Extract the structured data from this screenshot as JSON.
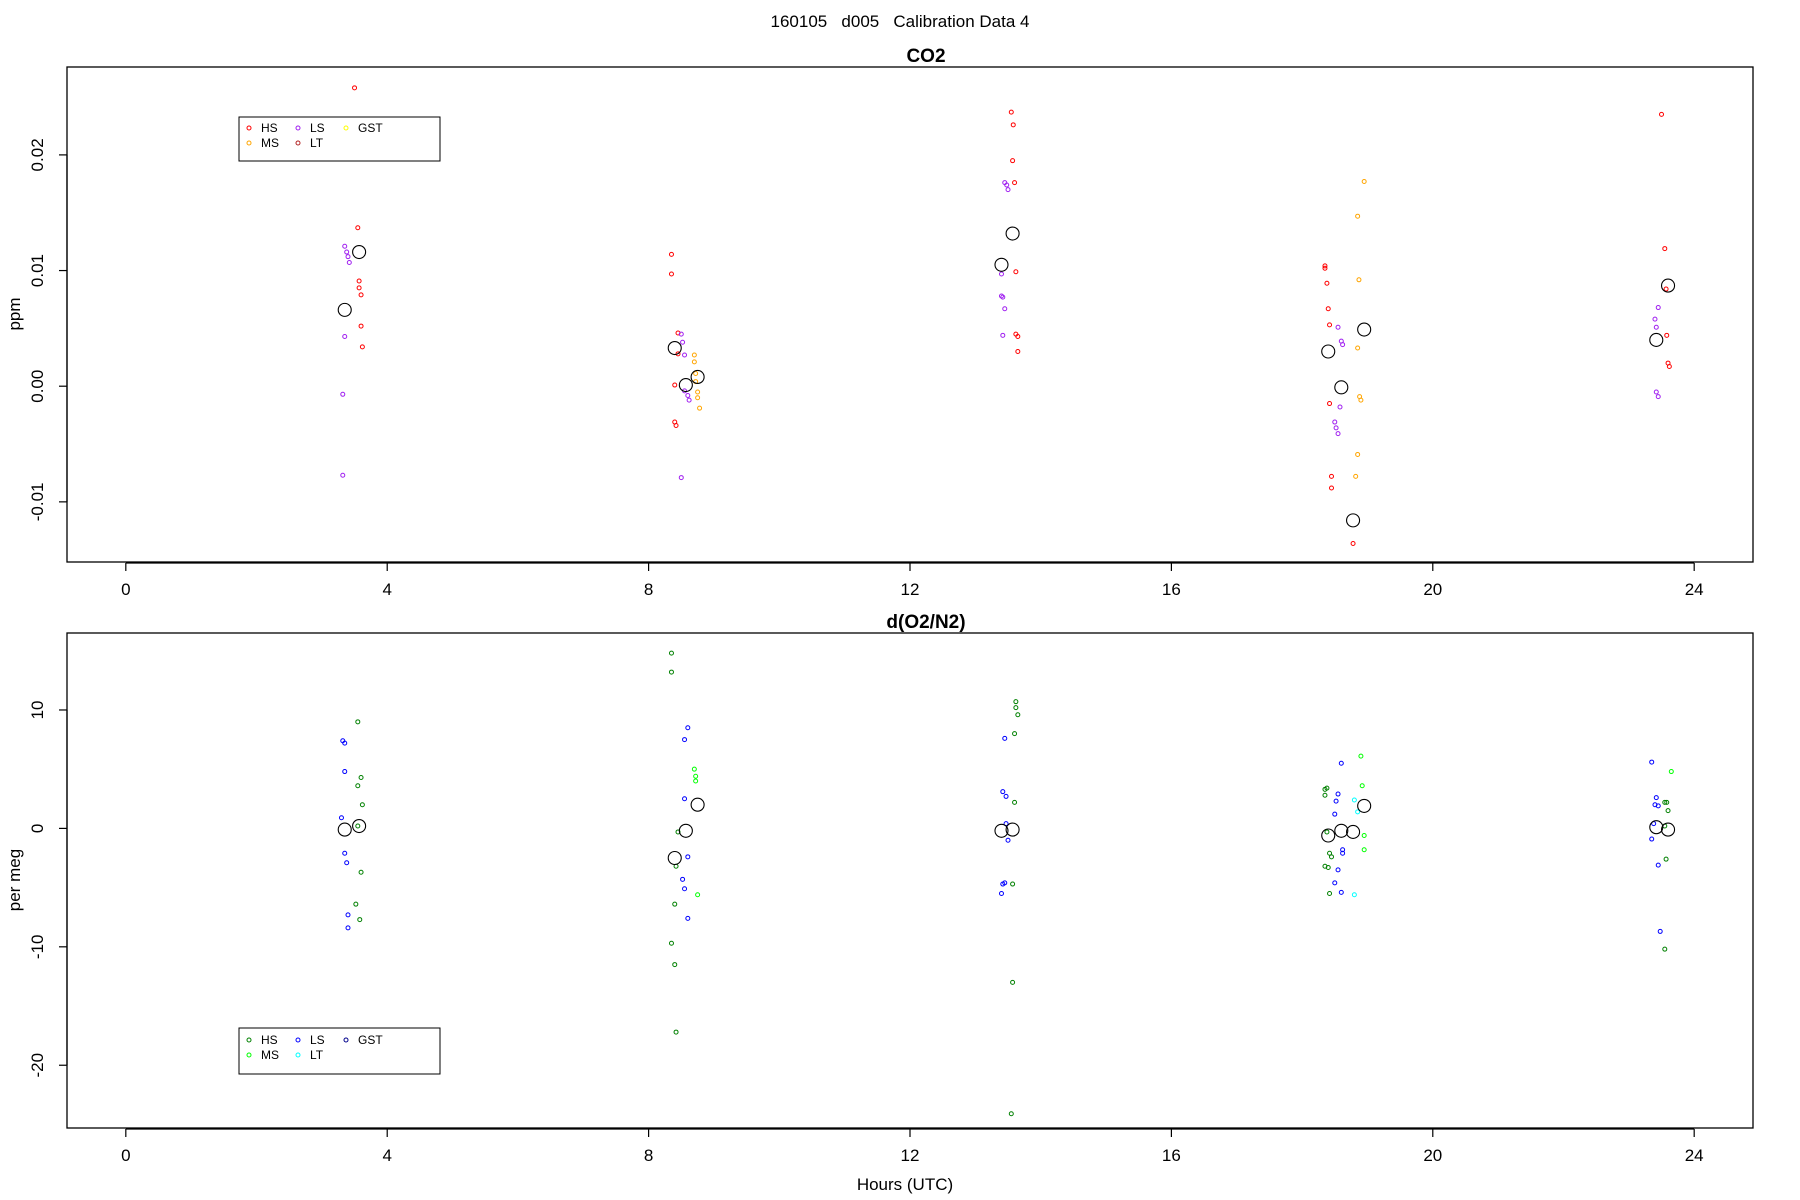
{
  "figure": {
    "suptitle": "160105   d005   Calibration Data 4"
  },
  "chart_data": [
    {
      "type": "scatter",
      "title": "CO2",
      "xlabel": "",
      "ylabel": "ppm",
      "xlim": [
        -0.9,
        24.9
      ],
      "ylim": [
        -0.0152,
        0.0276
      ],
      "x_ticks": [
        0,
        4,
        8,
        12,
        16,
        20,
        24
      ],
      "y_ticks": [
        -0.01,
        0.0,
        0.01,
        0.02
      ],
      "y_tick_labels": [
        "-0.01",
        "0.00",
        "0.01",
        "0.02"
      ],
      "grid": false,
      "legend_position": "top-left",
      "series": [
        {
          "name": "HS",
          "color": "#ff0000",
          "points": [
            [
              3.5,
              0.0258
            ],
            [
              3.55,
              0.0137
            ],
            [
              3.57,
              0.0091
            ],
            [
              3.57,
              0.0085
            ],
            [
              3.6,
              0.0079
            ],
            [
              3.6,
              0.0052
            ],
            [
              3.62,
              0.0034
            ],
            [
              8.35,
              0.0114
            ],
            [
              8.35,
              0.0097
            ],
            [
              8.45,
              0.0046
            ],
            [
              8.45,
              0.0028
            ],
            [
              8.4,
              0.0001
            ],
            [
              8.4,
              -0.0031
            ],
            [
              8.42,
              -0.0034
            ],
            [
              13.55,
              0.0237
            ],
            [
              13.58,
              0.0226
            ],
            [
              13.57,
              0.0195
            ],
            [
              13.6,
              0.0176
            ],
            [
              13.62,
              0.0099
            ],
            [
              13.62,
              0.0045
            ],
            [
              13.65,
              0.0043
            ],
            [
              13.65,
              0.003
            ],
            [
              18.35,
              0.0104
            ],
            [
              18.35,
              0.0102
            ],
            [
              18.38,
              0.0089
            ],
            [
              18.4,
              0.0067
            ],
            [
              18.42,
              0.0053
            ],
            [
              18.42,
              -0.0015
            ],
            [
              18.45,
              -0.0078
            ],
            [
              18.45,
              -0.0088
            ],
            [
              18.78,
              -0.0136
            ],
            [
              23.5,
              0.0235
            ],
            [
              23.55,
              0.0119
            ],
            [
              23.57,
              0.0084
            ],
            [
              23.58,
              0.0044
            ],
            [
              23.6,
              0.002
            ],
            [
              23.62,
              0.0017
            ]
          ]
        },
        {
          "name": "MS",
          "color": "#ffa500",
          "points": [
            [
              8.7,
              0.0027
            ],
            [
              8.7,
              0.0021
            ],
            [
              8.72,
              0.0011
            ],
            [
              8.72,
              0.0004
            ],
            [
              8.75,
              -0.0005
            ],
            [
              8.75,
              -0.001
            ],
            [
              8.78,
              -0.0019
            ],
            [
              18.85,
              0.0147
            ],
            [
              18.87,
              0.0092
            ],
            [
              18.85,
              0.0033
            ],
            [
              18.88,
              -0.0009
            ],
            [
              18.9,
              -0.0012
            ],
            [
              18.85,
              -0.0059
            ],
            [
              18.82,
              -0.0078
            ],
            [
              18.95,
              0.0177
            ]
          ]
        },
        {
          "name": "LS",
          "color": "#a020f0",
          "points": [
            [
              3.35,
              0.0121
            ],
            [
              3.38,
              0.0116
            ],
            [
              3.4,
              0.0112
            ],
            [
              3.42,
              0.0107
            ],
            [
              3.35,
              0.0043
            ],
            [
              3.32,
              -0.0007
            ],
            [
              3.32,
              -0.0077
            ],
            [
              8.5,
              0.0045
            ],
            [
              8.52,
              0.0038
            ],
            [
              8.55,
              0.0027
            ],
            [
              8.55,
              -0.0004
            ],
            [
              8.6,
              -0.0008
            ],
            [
              8.62,
              -0.0012
            ],
            [
              8.5,
              -0.0079
            ],
            [
              13.45,
              0.0176
            ],
            [
              13.48,
              0.0174
            ],
            [
              13.5,
              0.017
            ],
            [
              13.4,
              0.0097
            ],
            [
              13.4,
              0.0078
            ],
            [
              13.42,
              0.0077
            ],
            [
              13.45,
              0.0067
            ],
            [
              13.42,
              0.0044
            ],
            [
              18.55,
              0.0051
            ],
            [
              18.6,
              0.0039
            ],
            [
              18.62,
              0.0036
            ],
            [
              18.5,
              -0.0031
            ],
            [
              18.52,
              -0.0036
            ],
            [
              18.55,
              -0.0041
            ],
            [
              18.58,
              -0.0018
            ],
            [
              23.4,
              0.0058
            ],
            [
              23.42,
              0.0051
            ],
            [
              23.45,
              0.0068
            ],
            [
              23.42,
              -0.0005
            ],
            [
              23.45,
              -0.0009
            ]
          ]
        },
        {
          "name": "LT",
          "color": "#b22222",
          "points": []
        },
        {
          "name": "GST",
          "color": "#ffff00",
          "points": []
        },
        {
          "name": "mean",
          "color": "#000000",
          "points": [
            [
              3.35,
              0.0066
            ],
            [
              3.57,
              0.0116
            ],
            [
              8.4,
              0.0033
            ],
            [
              8.57,
              0.0001
            ],
            [
              8.75,
              0.0008
            ],
            [
              13.4,
              0.0105
            ],
            [
              13.57,
              0.0132
            ],
            [
              18.4,
              0.003
            ],
            [
              18.6,
              -0.0001
            ],
            [
              18.78,
              -0.0116
            ],
            [
              18.95,
              0.0049
            ],
            [
              23.42,
              0.004
            ],
            [
              23.6,
              0.0087
            ]
          ]
        }
      ]
    },
    {
      "type": "scatter",
      "title": "d(O2/N2)",
      "xlabel": "Hours (UTC)",
      "ylabel": "per meg",
      "xlim": [
        -0.9,
        24.9
      ],
      "ylim": [
        -25.3,
        16.5
      ],
      "x_ticks": [
        0,
        4,
        8,
        12,
        16,
        20,
        24
      ],
      "y_ticks": [
        -20,
        -10,
        0,
        10
      ],
      "y_tick_labels": [
        "-20",
        "-10",
        "0",
        "10"
      ],
      "grid": false,
      "legend_position": "bottom-left",
      "series": [
        {
          "name": "HS",
          "color": "#008000",
          "points": [
            [
              3.55,
              9.0
            ],
            [
              3.6,
              4.3
            ],
            [
              3.55,
              3.6
            ],
            [
              3.62,
              2.0
            ],
            [
              3.55,
              0.2
            ],
            [
              3.6,
              -3.7
            ],
            [
              3.52,
              -6.4
            ],
            [
              3.58,
              -7.7
            ],
            [
              8.35,
              14.8
            ],
            [
              8.35,
              13.2
            ],
            [
              8.45,
              -0.3
            ],
            [
              8.42,
              -3.2
            ],
            [
              8.4,
              -6.4
            ],
            [
              8.35,
              -9.7
            ],
            [
              8.4,
              -11.5
            ],
            [
              8.42,
              -17.2
            ],
            [
              13.62,
              10.7
            ],
            [
              13.62,
              10.2
            ],
            [
              13.65,
              9.6
            ],
            [
              13.6,
              8.0
            ],
            [
              13.6,
              2.2
            ],
            [
              13.57,
              -4.7
            ],
            [
              13.57,
              -13.0
            ],
            [
              13.55,
              -24.1
            ],
            [
              18.35,
              3.3
            ],
            [
              18.38,
              3.4
            ],
            [
              18.35,
              2.8
            ],
            [
              18.38,
              -0.3
            ],
            [
              18.42,
              -2.1
            ],
            [
              18.45,
              -2.4
            ],
            [
              18.35,
              -3.2
            ],
            [
              18.4,
              -3.3
            ],
            [
              18.42,
              -5.5
            ],
            [
              23.55,
              2.2
            ],
            [
              23.58,
              2.2
            ],
            [
              23.6,
              1.5
            ],
            [
              23.55,
              0.2
            ],
            [
              23.57,
              -2.6
            ],
            [
              23.55,
              -10.2
            ]
          ]
        },
        {
          "name": "MS",
          "color": "#00ff00",
          "points": [
            [
              8.7,
              5.0
            ],
            [
              8.72,
              4.4
            ],
            [
              8.72,
              4.0
            ],
            [
              8.75,
              -5.6
            ],
            [
              18.9,
              6.1
            ],
            [
              18.92,
              3.6
            ],
            [
              18.95,
              -0.6
            ],
            [
              18.95,
              -1.8
            ],
            [
              23.65,
              4.8
            ]
          ]
        },
        {
          "name": "LS",
          "color": "#0000ff",
          "points": [
            [
              3.32,
              7.4
            ],
            [
              3.35,
              7.2
            ],
            [
              3.35,
              4.8
            ],
            [
              3.3,
              0.9
            ],
            [
              3.35,
              -2.1
            ],
            [
              3.38,
              -2.9
            ],
            [
              3.4,
              -7.3
            ],
            [
              3.4,
              -8.4
            ],
            [
              8.6,
              8.5
            ],
            [
              8.55,
              7.5
            ],
            [
              8.55,
              2.5
            ],
            [
              8.6,
              -2.4
            ],
            [
              8.52,
              -4.3
            ],
            [
              8.55,
              -5.1
            ],
            [
              8.6,
              -7.6
            ],
            [
              13.45,
              7.6
            ],
            [
              13.42,
              3.1
            ],
            [
              13.47,
              2.7
            ],
            [
              13.47,
              0.4
            ],
            [
              13.5,
              -1.0
            ],
            [
              13.45,
              -4.6
            ],
            [
              13.42,
              -4.7
            ],
            [
              13.4,
              -5.5
            ],
            [
              18.6,
              5.5
            ],
            [
              18.55,
              2.9
            ],
            [
              18.52,
              2.3
            ],
            [
              18.5,
              1.2
            ],
            [
              18.62,
              -1.8
            ],
            [
              18.62,
              -2.1
            ],
            [
              18.55,
              -3.5
            ],
            [
              18.5,
              -4.6
            ],
            [
              18.6,
              -5.4
            ],
            [
              23.35,
              5.6
            ],
            [
              23.42,
              2.6
            ],
            [
              23.4,
              2.0
            ],
            [
              23.45,
              1.9
            ],
            [
              23.38,
              0.4
            ],
            [
              23.35,
              -0.9
            ],
            [
              23.45,
              -3.1
            ],
            [
              23.48,
              -8.7
            ]
          ]
        },
        {
          "name": "LT",
          "color": "#00ffff",
          "points": [
            [
              18.8,
              2.4
            ],
            [
              18.85,
              1.4
            ],
            [
              18.8,
              -5.6
            ]
          ]
        },
        {
          "name": "GST",
          "color": "#00008b",
          "points": []
        },
        {
          "name": "mean",
          "color": "#000000",
          "points": [
            [
              3.35,
              -0.1
            ],
            [
              3.57,
              0.2
            ],
            [
              8.4,
              -2.5
            ],
            [
              8.57,
              -0.2
            ],
            [
              8.75,
              2.0
            ],
            [
              13.4,
              -0.2
            ],
            [
              13.57,
              -0.1
            ],
            [
              18.4,
              -0.6
            ],
            [
              18.6,
              -0.2
            ],
            [
              18.78,
              -0.3
            ],
            [
              18.95,
              1.9
            ],
            [
              23.42,
              0.1
            ],
            [
              23.6,
              -0.1
            ]
          ]
        }
      ]
    }
  ]
}
